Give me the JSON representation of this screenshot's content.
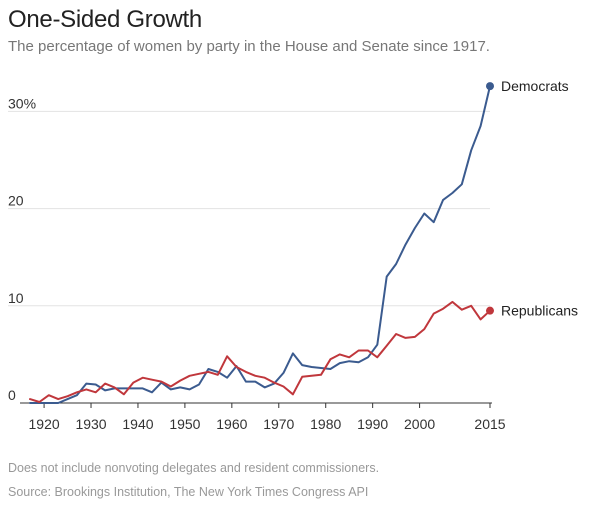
{
  "header": {
    "title": "One-Sided Growth",
    "subtitle": "The percentage of women by party in the House and Senate since 1917."
  },
  "footer": {
    "note": "Does not include nonvoting delegates and resident commissioners.",
    "source": "Source: Brookings Institution, The New York Times Congress API"
  },
  "chart_data": {
    "type": "line",
    "title": "One-Sided Growth",
    "xlabel": "",
    "ylabel": "",
    "xlim": [
      1917,
      2015
    ],
    "ylim": [
      0,
      33
    ],
    "grid": true,
    "xticks": [
      1920,
      1930,
      1940,
      1950,
      1960,
      1970,
      1980,
      1990,
      2000,
      2015
    ],
    "xtick_labels": [
      "1920",
      "1930",
      "1940",
      "1950",
      "1960",
      "1970",
      "1980",
      "1990",
      "2000",
      "2015"
    ],
    "yticks": [
      0,
      10,
      20,
      30
    ],
    "ytick_labels": [
      "0",
      "10",
      "20",
      "30%"
    ],
    "series": [
      {
        "name": "Democrats",
        "color": "#3b5b8f",
        "end_label": "Democrats",
        "x": [
          1917,
          1919,
          1921,
          1923,
          1925,
          1927,
          1929,
          1931,
          1933,
          1935,
          1937,
          1939,
          1941,
          1943,
          1945,
          1947,
          1949,
          1951,
          1953,
          1955,
          1957,
          1959,
          1961,
          1963,
          1965,
          1967,
          1969,
          1971,
          1973,
          1975,
          1977,
          1979,
          1981,
          1983,
          1985,
          1987,
          1989,
          1991,
          1993,
          1995,
          1997,
          1999,
          2001,
          2003,
          2005,
          2007,
          2009,
          2011,
          2013,
          2015
        ],
        "y": [
          0,
          0,
          0,
          0,
          0.4,
          0.8,
          2.0,
          1.9,
          1.3,
          1.5,
          1.5,
          1.5,
          1.5,
          1.1,
          2.1,
          1.4,
          1.6,
          1.4,
          1.9,
          3.5,
          3.2,
          2.6,
          3.8,
          2.2,
          2.2,
          1.6,
          2.0,
          3.1,
          5.1,
          3.9,
          3.7,
          3.6,
          3.5,
          4.1,
          4.3,
          4.2,
          4.7,
          6.0,
          13.0,
          14.3,
          16.3,
          18.0,
          19.5,
          18.6,
          20.9,
          21.6,
          22.5,
          26.0,
          28.5,
          32.6
        ]
      },
      {
        "name": "Republicans",
        "color": "#c0373c",
        "end_label": "Republicans",
        "x": [
          1917,
          1919,
          1921,
          1923,
          1925,
          1927,
          1929,
          1931,
          1933,
          1935,
          1937,
          1939,
          1941,
          1943,
          1945,
          1947,
          1949,
          1951,
          1953,
          1955,
          1957,
          1959,
          1961,
          1963,
          1965,
          1967,
          1969,
          1971,
          1973,
          1975,
          1977,
          1979,
          1981,
          1983,
          1985,
          1987,
          1989,
          1991,
          1993,
          1995,
          1997,
          1999,
          2001,
          2003,
          2005,
          2007,
          2009,
          2011,
          2013,
          2015
        ],
        "y": [
          0.4,
          0.1,
          0.8,
          0.4,
          0.7,
          1.1,
          1.4,
          1.1,
          2.0,
          1.6,
          0.9,
          2.1,
          2.6,
          2.4,
          2.2,
          1.7,
          2.3,
          2.8,
          3.0,
          3.2,
          2.9,
          4.8,
          3.7,
          3.2,
          2.8,
          2.6,
          2.1,
          1.7,
          0.9,
          2.7,
          2.8,
          2.9,
          4.5,
          5.0,
          4.7,
          5.4,
          5.4,
          4.7,
          5.9,
          7.1,
          6.7,
          6.8,
          7.6,
          9.2,
          9.7,
          10.4,
          9.6,
          10.0,
          8.6,
          9.5
        ]
      }
    ]
  }
}
